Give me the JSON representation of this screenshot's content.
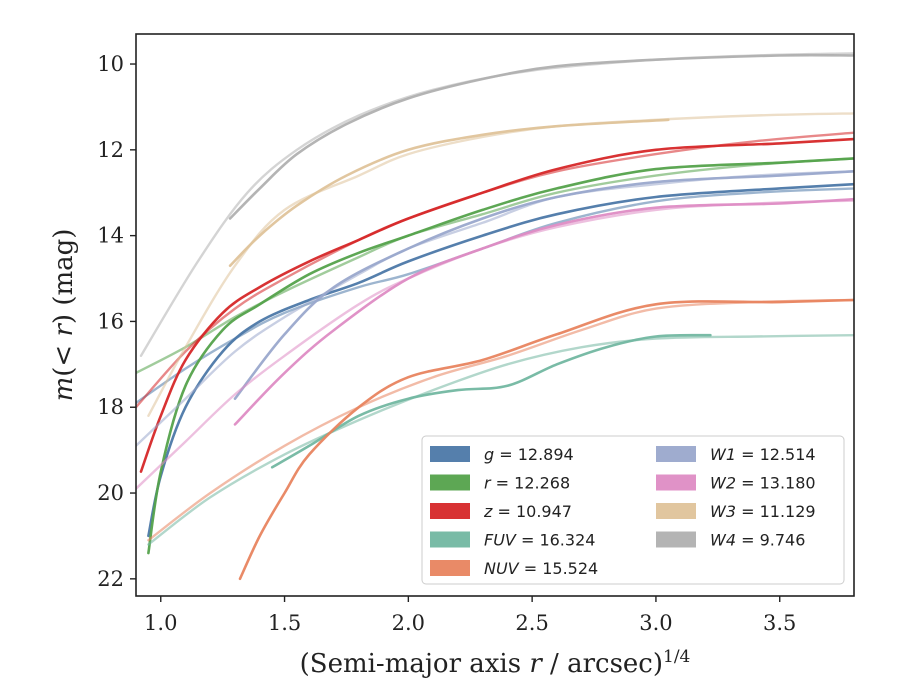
{
  "chart_data": {
    "type": "line",
    "xlabel": "(Semi-major axis r / arcsec)^1/4",
    "ylabel": "m(< r) (mag)",
    "xlim": [
      0.9,
      3.8
    ],
    "ylim": [
      22.4,
      9.3
    ],
    "y_inverted": true,
    "xticks": [
      1.0,
      1.5,
      2.0,
      2.5,
      3.0,
      3.5
    ],
    "yticks": [
      10,
      12,
      14,
      16,
      18,
      20,
      22
    ],
    "xtick_labels": [
      "1.0",
      "1.5",
      "2.0",
      "2.5",
      "3.0",
      "3.5"
    ],
    "ytick_labels": [
      "10",
      "12",
      "14",
      "16",
      "18",
      "20",
      "22"
    ],
    "grid": false,
    "legend_position": "lower-right",
    "series": [
      {
        "name": "g = 12.894",
        "color": "#4c78a8",
        "fit": [
          [
            0.9,
            17.9
          ],
          [
            1.1,
            17.1
          ],
          [
            1.3,
            16.4
          ],
          [
            1.5,
            15.8
          ],
          [
            1.8,
            15.2
          ],
          [
            2.0,
            14.9
          ],
          [
            2.3,
            14.3
          ],
          [
            2.6,
            13.7
          ],
          [
            3.0,
            13.2
          ],
          [
            3.4,
            13.0
          ],
          [
            3.8,
            12.9
          ]
        ],
        "obs": [
          [
            0.95,
            21.0
          ],
          [
            1.0,
            19.6
          ],
          [
            1.1,
            18.0
          ],
          [
            1.25,
            16.7
          ],
          [
            1.4,
            16.0
          ],
          [
            1.6,
            15.5
          ],
          [
            1.8,
            15.1
          ],
          [
            2.0,
            14.6
          ],
          [
            2.3,
            14.0
          ],
          [
            2.6,
            13.5
          ],
          [
            3.0,
            13.1
          ],
          [
            3.5,
            12.9
          ],
          [
            3.8,
            12.8
          ]
        ]
      },
      {
        "name": "r = 12.268",
        "color": "#54a24b",
        "fit": [
          [
            0.9,
            17.2
          ],
          [
            1.1,
            16.6
          ],
          [
            1.3,
            15.9
          ],
          [
            1.5,
            15.3
          ],
          [
            1.8,
            14.5
          ],
          [
            2.0,
            14.0
          ],
          [
            2.3,
            13.5
          ],
          [
            2.6,
            13.0
          ],
          [
            3.0,
            12.6
          ],
          [
            3.4,
            12.35
          ],
          [
            3.8,
            12.2
          ]
        ],
        "obs": [
          [
            0.95,
            21.4
          ],
          [
            1.0,
            19.5
          ],
          [
            1.1,
            17.5
          ],
          [
            1.25,
            16.2
          ],
          [
            1.4,
            15.6
          ],
          [
            1.6,
            14.9
          ],
          [
            1.8,
            14.4
          ],
          [
            2.0,
            14.0
          ],
          [
            2.3,
            13.4
          ],
          [
            2.6,
            12.9
          ],
          [
            3.0,
            12.45
          ],
          [
            3.5,
            12.3
          ],
          [
            3.8,
            12.2
          ]
        ]
      },
      {
        "name": "z = 10.947",
        "color": "#d62728",
        "fit": [
          [
            0.9,
            18.0
          ],
          [
            1.1,
            16.7
          ],
          [
            1.3,
            15.7
          ],
          [
            1.5,
            15.0
          ],
          [
            1.8,
            14.1
          ],
          [
            2.0,
            13.6
          ],
          [
            2.3,
            13.0
          ],
          [
            2.6,
            12.5
          ],
          [
            3.0,
            12.1
          ],
          [
            3.4,
            11.8
          ],
          [
            3.8,
            11.6
          ]
        ],
        "obs": [
          [
            0.92,
            19.5
          ],
          [
            1.0,
            18.2
          ],
          [
            1.1,
            16.9
          ],
          [
            1.25,
            15.8
          ],
          [
            1.4,
            15.2
          ],
          [
            1.6,
            14.6
          ],
          [
            1.8,
            14.1
          ],
          [
            2.0,
            13.6
          ],
          [
            2.3,
            13.0
          ],
          [
            2.6,
            12.45
          ],
          [
            3.0,
            12.0
          ],
          [
            3.5,
            11.85
          ],
          [
            3.8,
            11.75
          ]
        ]
      },
      {
        "name": "FUV = 16.324",
        "color": "#72b7a1",
        "fit": [
          [
            0.95,
            21.2
          ],
          [
            1.2,
            20.1
          ],
          [
            1.5,
            19.1
          ],
          [
            1.8,
            18.3
          ],
          [
            2.1,
            17.6
          ],
          [
            2.4,
            17.0
          ],
          [
            2.7,
            16.6
          ],
          [
            3.0,
            16.4
          ],
          [
            3.4,
            16.35
          ],
          [
            3.8,
            16.32
          ]
        ],
        "obs": [
          [
            1.45,
            19.4
          ],
          [
            1.6,
            18.9
          ],
          [
            1.8,
            18.2
          ],
          [
            2.0,
            17.8
          ],
          [
            2.2,
            17.6
          ],
          [
            2.4,
            17.5
          ],
          [
            2.6,
            17.0
          ],
          [
            2.8,
            16.6
          ],
          [
            3.0,
            16.35
          ],
          [
            3.22,
            16.32
          ]
        ]
      },
      {
        "name": "NUV = 15.524",
        "color": "#e8845f",
        "fit": [
          [
            0.95,
            21.1
          ],
          [
            1.2,
            20.0
          ],
          [
            1.5,
            18.9
          ],
          [
            1.8,
            18.0
          ],
          [
            2.1,
            17.3
          ],
          [
            2.4,
            16.8
          ],
          [
            2.7,
            16.2
          ],
          [
            3.0,
            15.7
          ],
          [
            3.4,
            15.55
          ],
          [
            3.8,
            15.5
          ]
        ],
        "obs": [
          [
            1.32,
            22.0
          ],
          [
            1.4,
            21.0
          ],
          [
            1.5,
            20.0
          ],
          [
            1.6,
            19.1
          ],
          [
            1.8,
            18.0
          ],
          [
            2.0,
            17.3
          ],
          [
            2.3,
            16.9
          ],
          [
            2.6,
            16.3
          ],
          [
            3.0,
            15.6
          ],
          [
            3.5,
            15.55
          ],
          [
            3.8,
            15.5
          ]
        ]
      },
      {
        "name": "W1 = 12.514",
        "color": "#9aa8cc",
        "fit": [
          [
            0.9,
            18.9
          ],
          [
            1.1,
            17.8
          ],
          [
            1.3,
            16.7
          ],
          [
            1.5,
            15.9
          ],
          [
            1.8,
            14.9
          ],
          [
            2.0,
            14.3
          ],
          [
            2.3,
            13.7
          ],
          [
            2.6,
            13.1
          ],
          [
            3.0,
            12.8
          ],
          [
            3.4,
            12.6
          ],
          [
            3.8,
            12.5
          ]
        ],
        "obs": [
          [
            1.3,
            17.8
          ],
          [
            1.5,
            16.3
          ],
          [
            1.7,
            15.2
          ],
          [
            2.0,
            14.3
          ],
          [
            2.3,
            13.6
          ],
          [
            2.6,
            13.1
          ],
          [
            3.0,
            12.75
          ],
          [
            3.5,
            12.6
          ],
          [
            3.8,
            12.5
          ]
        ]
      },
      {
        "name": "W2 = 13.180",
        "color": "#de8cc4",
        "fit": [
          [
            0.9,
            19.9
          ],
          [
            1.1,
            18.8
          ],
          [
            1.3,
            17.7
          ],
          [
            1.5,
            16.8
          ],
          [
            1.8,
            15.6
          ],
          [
            2.0,
            15.0
          ],
          [
            2.3,
            14.3
          ],
          [
            2.6,
            13.8
          ],
          [
            3.0,
            13.4
          ],
          [
            3.4,
            13.25
          ],
          [
            3.8,
            13.18
          ]
        ],
        "obs": [
          [
            1.3,
            18.4
          ],
          [
            1.5,
            17.2
          ],
          [
            1.7,
            16.2
          ],
          [
            2.0,
            15.0
          ],
          [
            2.3,
            14.3
          ],
          [
            2.6,
            13.75
          ],
          [
            3.0,
            13.35
          ],
          [
            3.5,
            13.25
          ],
          [
            3.8,
            13.15
          ]
        ]
      },
      {
        "name": "W3 = 11.129",
        "color": "#dfc39a",
        "fit": [
          [
            0.95,
            18.2
          ],
          [
            1.1,
            16.6
          ],
          [
            1.3,
            14.7
          ],
          [
            1.5,
            13.4
          ],
          [
            1.8,
            12.6
          ],
          [
            2.0,
            12.1
          ],
          [
            2.3,
            11.7
          ],
          [
            2.6,
            11.45
          ],
          [
            3.0,
            11.3
          ],
          [
            3.4,
            11.2
          ],
          [
            3.8,
            11.15
          ]
        ],
        "obs": [
          [
            1.28,
            14.7
          ],
          [
            1.4,
            14.0
          ],
          [
            1.55,
            13.3
          ],
          [
            1.75,
            12.6
          ],
          [
            2.0,
            12.0
          ],
          [
            2.3,
            11.65
          ],
          [
            2.6,
            11.45
          ],
          [
            3.05,
            11.3
          ]
        ]
      },
      {
        "name": "W4 = 9.746",
        "color": "#b0b0b0",
        "fit": [
          [
            0.92,
            16.8
          ],
          [
            1.15,
            14.6
          ],
          [
            1.35,
            13.0
          ],
          [
            1.55,
            12.0
          ],
          [
            1.8,
            11.2
          ],
          [
            2.1,
            10.6
          ],
          [
            2.5,
            10.15
          ],
          [
            3.0,
            9.9
          ],
          [
            3.4,
            9.8
          ],
          [
            3.8,
            9.75
          ]
        ],
        "obs": [
          [
            1.28,
            13.6
          ],
          [
            1.4,
            12.9
          ],
          [
            1.55,
            12.1
          ],
          [
            1.75,
            11.4
          ],
          [
            2.0,
            10.8
          ],
          [
            2.3,
            10.35
          ],
          [
            2.6,
            10.05
          ],
          [
            3.0,
            9.9
          ],
          [
            3.5,
            9.8
          ],
          [
            3.8,
            9.8
          ]
        ]
      }
    ]
  }
}
